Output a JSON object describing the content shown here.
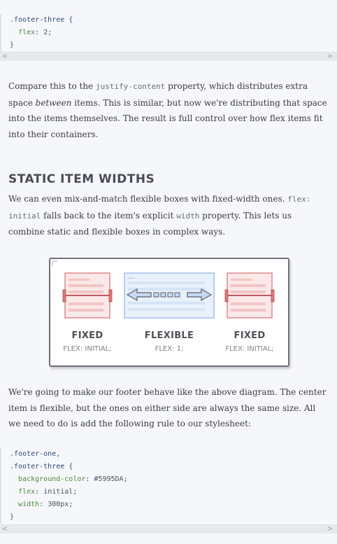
{
  "top_code": {
    "lines": [
      {
        "sel": ".footer-three {"
      },
      {
        "prop": "flex",
        "val": "2;"
      },
      {
        "punc": "}"
      }
    ]
  },
  "scroll": {
    "left": "<",
    "right": ">"
  },
  "para1": {
    "t1": "Compare this to the ",
    "code1": "justify-content",
    "t2": " property, which distributes extra space ",
    "em1": "between",
    "t3": " items. This is similar, but now we're distributing that space into the items themselves. The result is full control over how flex items fit into their containers."
  },
  "heading": "STATIC ITEM WIDTHS",
  "para2": {
    "t1": "We can even mix-and-match flexible boxes with fixed-width ones. ",
    "code1": "flex: initial",
    "t2": " falls back to the item's explicit ",
    "code2": "width",
    "t3": " property. This lets us combine static and flexible boxes in complex ways."
  },
  "diagram": {
    "left_title": "FIXED",
    "left_sub": "FLEX: INITIAL;",
    "center_title": "FLEXIBLE",
    "center_sub": "FLEX: 1;",
    "right_title": "FIXED",
    "right_sub": "FLEX: INITIAL;",
    "colors": {
      "fixed": "#e07a7a",
      "fixed_fill": "#fbe8e8",
      "flex": "#8fb6e6",
      "flex_fill": "#e9f1fb",
      "arrow": "#5a5e6a"
    }
  },
  "para3": {
    "t1": "We're going to make our footer behave like the above diagram. The center item is flexible, but the ones on either side are always the same size. All we need to do is add the following rule to our stylesheet:"
  },
  "bottom_code": {
    "sel1": ".footer-one,",
    "sel2": ".footer-three {",
    "p1": "background-color",
    "v1": "#5995DA;",
    "p2": "flex",
    "v2": "initial;",
    "p3": "width",
    "v3": "300px;",
    "close": "}"
  }
}
